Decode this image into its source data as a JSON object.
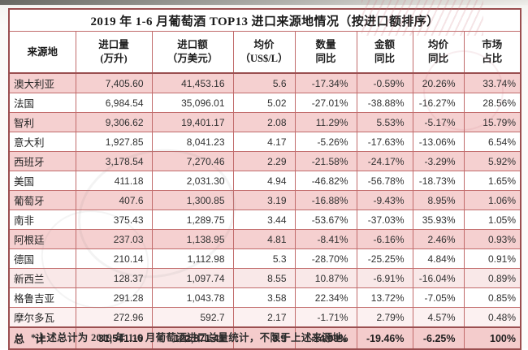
{
  "title": "2019 年 1-6 月葡萄酒 TOP13 进口来源地情况（按进口额排序）",
  "columns": [
    "来源地",
    "进口量\n(万升)",
    "进口额\n（万美元）",
    "均价\n（US$/L）",
    "数量\n同比",
    "金额\n同比",
    "均价\n同比",
    "市场\n占比"
  ],
  "rows": [
    [
      "澳大利亚",
      "7,405.60",
      "41,453.16",
      "5.6",
      "-17.34%",
      "-0.59%",
      "20.26%",
      "33.74%"
    ],
    [
      "法国",
      "6,984.54",
      "35,096.01",
      "5.02",
      "-27.01%",
      "-38.88%",
      "-16.27%",
      "28.56%"
    ],
    [
      "智利",
      "9,306.62",
      "19,401.17",
      "2.08",
      "11.29%",
      "5.53%",
      "-5.17%",
      "15.79%"
    ],
    [
      "意大利",
      "1,927.85",
      "8,041.23",
      "4.17",
      "-5.26%",
      "-17.63%",
      "-13.06%",
      "6.54%"
    ],
    [
      "西班牙",
      "3,178.54",
      "7,270.46",
      "2.29",
      "-21.58%",
      "-24.17%",
      "-3.29%",
      "5.92%"
    ],
    [
      "美国",
      "411.18",
      "2,031.30",
      "4.94",
      "-46.82%",
      "-56.78%",
      "-18.73%",
      "1.65%"
    ],
    [
      "葡萄牙",
      "407.6",
      "1,300.85",
      "3.19",
      "-16.88%",
      "-9.43%",
      "8.95%",
      "1.06%"
    ],
    [
      "南非",
      "375.43",
      "1,289.75",
      "3.44",
      "-53.67%",
      "-37.03%",
      "35.93%",
      "1.05%"
    ],
    [
      "阿根廷",
      "237.03",
      "1,138.95",
      "4.81",
      "-8.41%",
      "-6.16%",
      "2.46%",
      "0.93%"
    ],
    [
      "德国",
      "210.14",
      "1,112.98",
      "5.3",
      "-28.70%",
      "-25.25%",
      "4.84%",
      "0.91%"
    ],
    [
      "新西兰",
      "128.37",
      "1,097.74",
      "8.55",
      "10.87%",
      "-6.91%",
      "-16.04%",
      "0.89%"
    ],
    [
      "格鲁吉亚",
      "291.28",
      "1,043.78",
      "3.58",
      "22.34%",
      "13.72%",
      "-7.05%",
      "0.85%"
    ],
    [
      "摩尔多瓦",
      "272.96",
      "592.7",
      "2.17",
      "-1.71%",
      "2.79%",
      "4.57%",
      "0.48%"
    ]
  ],
  "total_row": [
    "总　计",
    "31,541.10",
    "122,871.41",
    "3.9",
    "-14.09%",
    "-19.46%",
    "-6.25%",
    "100%"
  ],
  "footnote": "*上述总计为 2019 年 1-6 月葡萄酒进口总量统计，不限于上述来源地。",
  "colors": {
    "cell_border": "#c16b6b",
    "table_frame": "#9a4f50",
    "row_highlight": "#f5d0d0",
    "total_row_bg": "#f4cccc",
    "title_text": "#1b1b1b",
    "body_text": "#303030"
  }
}
